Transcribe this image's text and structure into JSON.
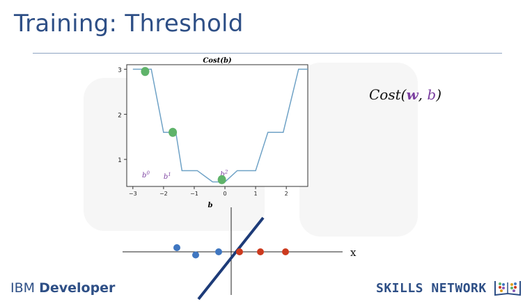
{
  "slide": {
    "title": "Training: Threshold",
    "cost_expression": {
      "prefix": "Cost(",
      "w": "w",
      "comma": ", ",
      "b": "b",
      "suffix": ")"
    }
  },
  "branding": {
    "ibm": "IBM",
    "developer": "Developer",
    "skills_network": "SKILLS NETWORK"
  },
  "colors": {
    "title": "#2e4f86",
    "curve": "#6fa2c6",
    "green_dot": "#5fb36a",
    "blue_dot": "#3f76c0",
    "red_dot": "#cc3a1e",
    "purple": "#7b3fa0"
  },
  "chart_data": {
    "type": "line",
    "title": "Cost(b)",
    "xlabel": "b",
    "ylabel": "",
    "xlim": [
      -3.2,
      2.7
    ],
    "ylim": [
      0.4,
      3.1
    ],
    "x_ticks": [
      -3,
      -2,
      -1,
      0,
      1,
      2
    ],
    "y_ticks": [
      1,
      2,
      3
    ],
    "series": [
      {
        "name": "Cost(b)",
        "x": [
          -3.0,
          -2.4,
          -2.0,
          -1.6,
          -1.4,
          -0.9,
          -0.4,
          0.0,
          0.4,
          1.0,
          1.4,
          1.9,
          2.4,
          2.7
        ],
        "y": [
          3.0,
          3.0,
          1.6,
          1.6,
          0.75,
          0.75,
          0.5,
          0.5,
          0.75,
          0.75,
          1.6,
          1.6,
          3.0,
          3.0
        ]
      }
    ],
    "points": [
      {
        "label": "b⁰",
        "x": -2.6,
        "y": 2.95
      },
      {
        "label": "b¹",
        "x": -1.7,
        "y": 1.6
      },
      {
        "label": "b²",
        "x": -0.1,
        "y": 0.55
      }
    ],
    "annotations": [
      {
        "text": "b",
        "sup": "0",
        "x": -2.7,
        "y": 0.6
      },
      {
        "text": "b",
        "sup": "1",
        "x": -2.0,
        "y": 0.57
      },
      {
        "text": "b",
        "sup": "2",
        "x": -0.15,
        "y": 0.62
      }
    ]
  },
  "number_line": {
    "axis_label": "x",
    "blue_points": [
      {
        "x": -2.6,
        "y": 0.2
      },
      {
        "x": -1.7,
        "y": -0.15
      },
      {
        "x": -0.6,
        "y": 0.0
      }
    ],
    "red_points": [
      {
        "x": 0.4,
        "y": 0.0
      },
      {
        "x": 1.4,
        "y": 0.0
      },
      {
        "x": 2.6,
        "y": 0.0
      }
    ]
  }
}
